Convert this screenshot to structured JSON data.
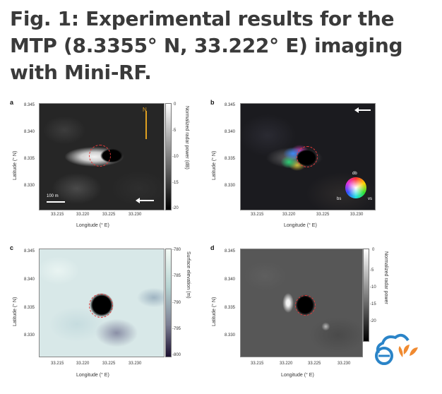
{
  "figure": {
    "title": "Fig. 1: Experimental results for the MTP (8.3355° N, 33.222° E) imaging with Mini-RF."
  },
  "axes": {
    "y_ticks": [
      "8.345",
      "8.340",
      "8.335",
      "8.330"
    ],
    "x_ticks": [
      "33.215",
      "33.220",
      "33.225",
      "33.230"
    ],
    "xlabel": "Longitude (° E)",
    "ylabel": "Latitude (° N)"
  },
  "panels": {
    "a": {
      "label": "a",
      "colorbar_label": "Normalized radar power (dB)",
      "colorbar_ticks": [
        "0",
        "-5",
        "-10",
        "-15",
        "-20"
      ],
      "north_label": "N",
      "scale_label": "100 m"
    },
    "b": {
      "label": "b",
      "wheel_labels": {
        "top": "db",
        "left": "bs",
        "right": "vs"
      }
    },
    "c": {
      "label": "c",
      "colorbar_label": "Surface elevation (m)",
      "colorbar_ticks": [
        "-780",
        "-785",
        "-790",
        "-795",
        "-800"
      ]
    },
    "d": {
      "label": "d",
      "colorbar_label": "Normalized radar power",
      "colorbar_ticks": [
        "0",
        "-5",
        "-10",
        "-15",
        "-20"
      ]
    }
  },
  "colors": {
    "crater_outline": "#e23a3a",
    "north_arrow": "#e0a020",
    "logo_blue": "#2a84c8",
    "logo_orange": "#f08a30"
  }
}
